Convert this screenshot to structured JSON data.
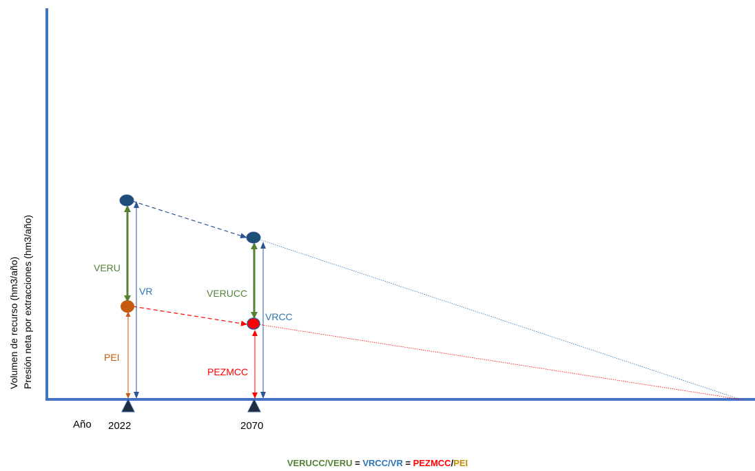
{
  "y_axis_label_line1": "Volumen de recurso (hm3/año)",
  "y_axis_label_line2": "Presión neta por extracciones (hm3/año)",
  "x_axis_label": "Año",
  "years": [
    "2022",
    "2070"
  ],
  "labels": {
    "veru": "VERU",
    "vr": "VR",
    "pei": "PEI",
    "verucc": "VERUCC",
    "vrcc": "VRCC",
    "pezmcc": "PEZMCC"
  },
  "formula": {
    "verucc": "VERUCC",
    "slash1": "/",
    "veru": "VERU",
    "eq1": " = ",
    "vrcc": "VRCC",
    "slash2": "/",
    "vr": "VR",
    "eq2": " = ",
    "pezmcc": "PEZMCC",
    "slash3": "/",
    "pei": "PEI"
  },
  "colors": {
    "axis": "#4472c4",
    "resource": "#1f3864",
    "resource_arrow": "#2e5597",
    "green": "#548235",
    "orange": "#c55a11",
    "red": "#ff0000",
    "blue_text": "#2e75b6",
    "gold": "#bf8f00"
  }
}
